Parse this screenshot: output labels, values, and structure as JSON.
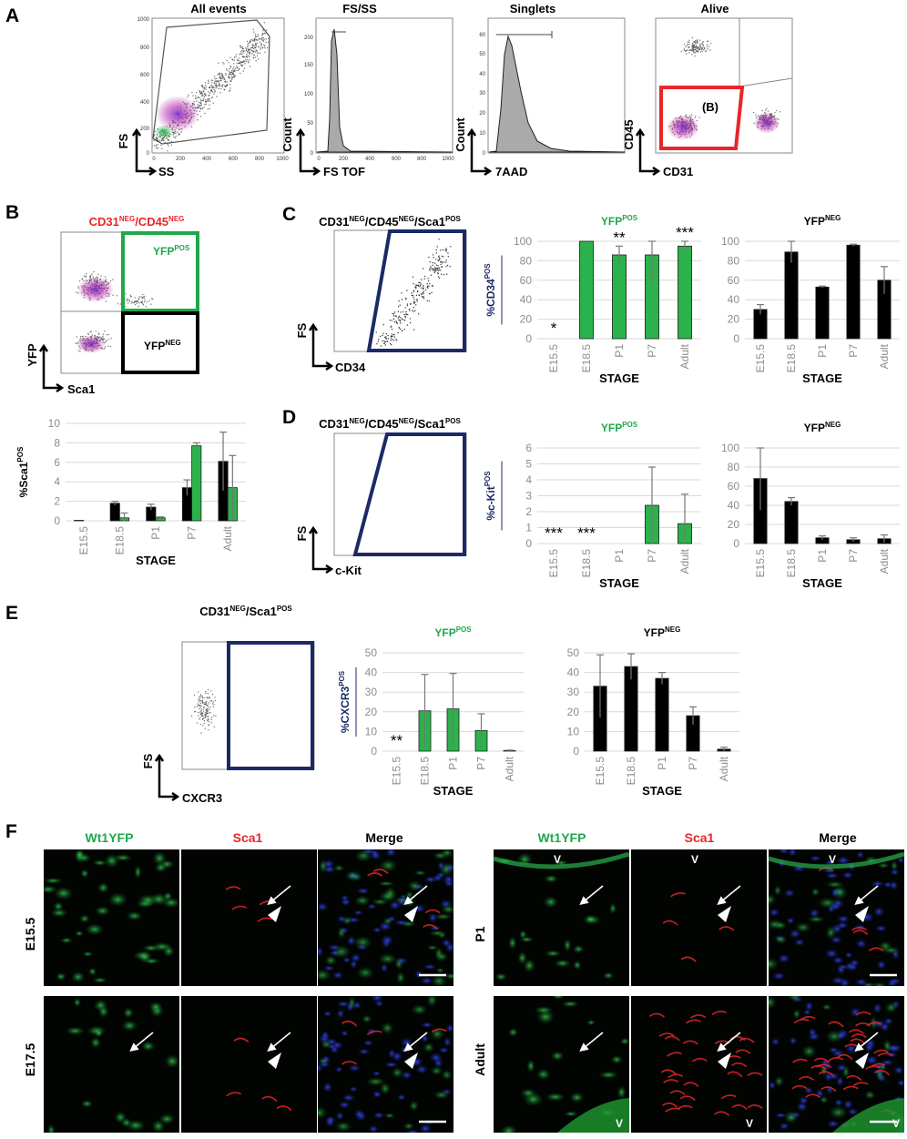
{
  "panel_letters": {
    "a": "A",
    "b": "B",
    "c": "C",
    "d": "D",
    "e": "E",
    "f": "F"
  },
  "colors": {
    "green": "#1fa84a",
    "bar_green": "#2bb24c",
    "red": "#e8262a",
    "navy": "#1b2a66",
    "black": "#000000"
  },
  "flow_plots": {
    "all_events": {
      "title": "All events",
      "xlabel": "SS",
      "ylabel": "FS"
    },
    "fs_ss": {
      "title": "FS/SS",
      "xlabel": "FS TOF",
      "ylabel": "Count"
    },
    "singlets": {
      "title": "Singlets",
      "xlabel": "7AAD",
      "ylabel": "Count"
    },
    "alive": {
      "title": "Alive",
      "xlabel": "CD31",
      "ylabel": "CD45",
      "gate": "(B)"
    },
    "yfp_sca1": {
      "xlabel": "Sca1",
      "ylabel": "YFP",
      "gate_pos": "YFP",
      "gate_neg": "YFP"
    },
    "cd34": {
      "xlabel": "CD34",
      "ylabel": "FS"
    },
    "ckit": {
      "xlabel": "c-Kit",
      "ylabel": "FS"
    },
    "cxcr3": {
      "title": "CD31",
      "xlabel": "CXCR3",
      "ylabel": "FS"
    }
  },
  "gate_titles": {
    "b": {
      "p1": "CD31",
      "s1": "NEG",
      "p2": "/CD45",
      "s2": "NEG"
    },
    "c": {
      "p1": "CD31",
      "s1": "NEG",
      "p2": "/CD45",
      "s2": "NEG",
      "p3": "/Sca1",
      "s3": "POS"
    },
    "d": {
      "p1": "CD31",
      "s1": "NEG",
      "p2": "/CD45",
      "s2": "NEG",
      "p3": "/Sca1",
      "s3": "POS"
    },
    "e": {
      "p1": "CD31",
      "s1": "NEG",
      "p2": "/Sca1",
      "s2": "POS"
    }
  },
  "superscripts": {
    "pos": "POS",
    "neg": "NEG"
  },
  "chart_data": [
    {
      "id": "B",
      "type": "bar",
      "categories": [
        "E15.5",
        "E18.5",
        "P1",
        "P7",
        "Adult"
      ],
      "xlabel": "STAGE",
      "ylabel": "%Sca1",
      "ylim": [
        0,
        10
      ],
      "series": [
        {
          "values": [
            0.05,
            1.8,
            1.4,
            3.4,
            6.1
          ],
          "errors": [
            0,
            0.2,
            0.3,
            0.8,
            3.0
          ],
          "color": "#000000"
        },
        {
          "values": [
            0,
            0.3,
            0.3,
            7.7,
            3.4
          ],
          "errors": [
            0,
            0.5,
            0.1,
            0.3,
            3.3
          ],
          "color": "#2bb24c"
        }
      ]
    },
    {
      "id": "C-YFPpos",
      "type": "bar",
      "title": "YFP",
      "categories": [
        "E15.5",
        "E18.5",
        "P1",
        "P7",
        "Adult"
      ],
      "xlabel": "STAGE",
      "ylabel": "%CD34",
      "ylim": [
        0,
        100
      ],
      "values": [
        0,
        100,
        86,
        86,
        95
      ],
      "errors": [
        0,
        0,
        9,
        30,
        5
      ],
      "annotations": [
        "*",
        "",
        "**",
        "",
        "***"
      ],
      "color": "#2bb24c"
    },
    {
      "id": "C-YFPneg",
      "type": "bar",
      "title": "YFP",
      "categories": [
        "E15.5",
        "E18.5",
        "P1",
        "P7",
        "Adult"
      ],
      "xlabel": "STAGE",
      "ylim": [
        0,
        100
      ],
      "values": [
        30,
        89,
        53,
        96,
        60
      ],
      "errors": [
        5,
        11,
        1,
        1,
        14
      ],
      "color": "#000000"
    },
    {
      "id": "D-YFPpos",
      "type": "bar",
      "title": "YFP",
      "categories": [
        "E15.5",
        "E18.5",
        "P1",
        "P7",
        "Adult"
      ],
      "xlabel": "STAGE",
      "ylabel": "%c-Kit",
      "ylim": [
        0,
        6
      ],
      "values": [
        0,
        0,
        0,
        2.4,
        1.25
      ],
      "errors": [
        0,
        0,
        0,
        2.4,
        1.85
      ],
      "annotations": [
        "***",
        "***",
        "",
        "",
        ""
      ],
      "color": "#2bb24c"
    },
    {
      "id": "D-YFPneg",
      "type": "bar",
      "title": "YFP",
      "categories": [
        "E15.5",
        "E18.5",
        "P1",
        "P7",
        "Adult"
      ],
      "xlabel": "STAGE",
      "ylim": [
        0,
        100
      ],
      "values": [
        68,
        44,
        6,
        4,
        5
      ],
      "errors": [
        33,
        4,
        2,
        2,
        4
      ],
      "color": "#000000"
    },
    {
      "id": "E-YFPpos",
      "type": "bar",
      "title": "YFP",
      "categories": [
        "E15.5",
        "E18.5",
        "P1",
        "P7",
        "Adult"
      ],
      "xlabel": "STAGE",
      "ylabel": "%CXCR3",
      "ylim": [
        0,
        50
      ],
      "values": [
        0,
        20.5,
        21.5,
        10.5,
        0.3
      ],
      "errors": [
        0,
        18.5,
        18,
        8.5,
        0.2
      ],
      "annotations": [
        "**",
        "",
        "",
        "",
        ""
      ],
      "color": "#2bb24c"
    },
    {
      "id": "E-YFPneg",
      "type": "bar",
      "title": "YFP",
      "categories": [
        "E15.5",
        "E18.5",
        "P1",
        "P7",
        "Adult"
      ],
      "xlabel": "STAGE",
      "ylim": [
        0,
        50
      ],
      "values": [
        33,
        43,
        37,
        18,
        1
      ],
      "errors": [
        16,
        6.5,
        3,
        4.5,
        1
      ],
      "color": "#000000"
    }
  ],
  "micro": {
    "col_headers": [
      "Wt1YFP",
      "Sca1",
      "Merge"
    ],
    "rows_left": [
      "E15.5",
      "E17.5"
    ],
    "rows_right": [
      "P1",
      "Adult"
    ],
    "vessel": "V"
  }
}
